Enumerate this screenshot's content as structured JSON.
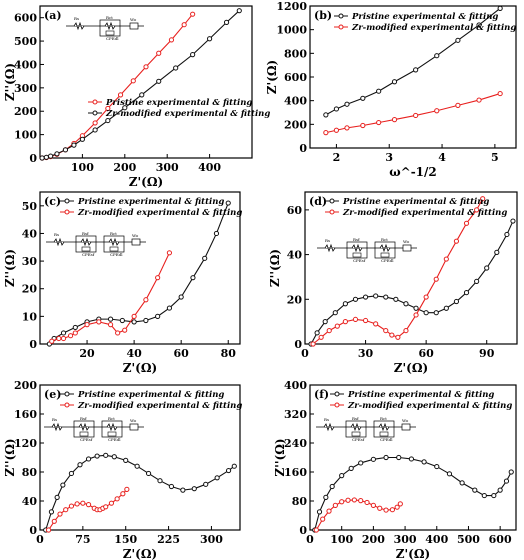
{
  "chart_data": [
    {
      "panel": "(a)",
      "type": "line",
      "xlabel": "Z'(Ω)",
      "ylabel": "Z''(Ω)",
      "xlim": [
        0,
        500
      ],
      "ylim": [
        0,
        650
      ],
      "xticks": [
        "100",
        "200",
        "300",
        "400"
      ],
      "yticks": [
        "0",
        "100",
        "200",
        "300",
        "400",
        "500",
        "600"
      ],
      "legend_position": "center-right",
      "circuit_label": [
        "Rs",
        "Rct",
        "CPEdl",
        "Wo"
      ],
      "series": [
        {
          "name": "Pristine experimental & fitting",
          "color": "#e8201e",
          "x": [
            5,
            15,
            25,
            40,
            60,
            80,
            100,
            130,
            160,
            190,
            220,
            250,
            280,
            310,
            340,
            360
          ],
          "y": [
            0,
            2,
            6,
            16,
            35,
            62,
            95,
            150,
            212,
            270,
            330,
            390,
            448,
            505,
            570,
            615
          ]
        },
        {
          "name": "Zr-modified experimental & fitting",
          "color": "#111111",
          "x": [
            5,
            15,
            25,
            40,
            60,
            80,
            100,
            130,
            160,
            200,
            240,
            280,
            320,
            360,
            400,
            440,
            470
          ],
          "y": [
            0,
            3,
            8,
            18,
            35,
            55,
            80,
            120,
            160,
            215,
            270,
            328,
            385,
            442,
            510,
            580,
            630
          ]
        }
      ]
    },
    {
      "panel": "(b)",
      "type": "line",
      "xlabel": "ω^-1/2",
      "ylabel": "Z'(Ω)",
      "xlim": [
        1.5,
        5.4
      ],
      "ylim": [
        0,
        1200
      ],
      "xticks": [
        "2",
        "3",
        "4",
        "5"
      ],
      "yticks": [
        "0",
        "200",
        "400",
        "600",
        "800",
        "1000",
        "1200"
      ],
      "legend_position": "top-left",
      "series": [
        {
          "name": "Pristine experimental & fitting",
          "color": "#111111",
          "x": [
            1.8,
            2.0,
            2.2,
            2.5,
            2.8,
            3.1,
            3.5,
            3.9,
            4.3,
            4.7,
            5.1
          ],
          "y": [
            280,
            330,
            370,
            420,
            480,
            560,
            660,
            780,
            910,
            1040,
            1180
          ]
        },
        {
          "name": "Zr-modified experimental & fitting",
          "color": "#e8201e",
          "x": [
            1.8,
            2.0,
            2.2,
            2.5,
            2.8,
            3.1,
            3.5,
            3.9,
            4.3,
            4.7,
            5.1
          ],
          "y": [
            130,
            150,
            170,
            190,
            215,
            240,
            275,
            315,
            360,
            405,
            460
          ]
        }
      ]
    },
    {
      "panel": "(c)",
      "type": "line",
      "xlabel": "Z'(Ω)",
      "ylabel": "Z''(Ω)",
      "xlim": [
        0,
        85
      ],
      "ylim": [
        0,
        55
      ],
      "xticks": [
        "20",
        "40",
        "60",
        "80"
      ],
      "yticks": [
        "0",
        "10",
        "20",
        "30",
        "40",
        "50"
      ],
      "legend_position": "top",
      "circuit_label": [
        "Rs",
        "Rsf",
        "Rct",
        "CPEsf",
        "CPEdl",
        "Wo"
      ],
      "series": [
        {
          "name": "Pristine experimental & fitting",
          "color": "#111111",
          "x": [
            4,
            6,
            10,
            15,
            20,
            25,
            30,
            35,
            40,
            45,
            50,
            55,
            60,
            65,
            70,
            75,
            80
          ],
          "y": [
            0,
            2,
            4,
            6,
            8,
            9,
            9,
            8.5,
            8,
            8.5,
            10,
            13,
            17,
            24,
            31,
            40,
            51
          ]
        },
        {
          "name": "Zr-modified experimental & fitting",
          "color": "#e8201e",
          "x": [
            5,
            8,
            10,
            13,
            15,
            20,
            25,
            30,
            33,
            36,
            40,
            45,
            50,
            55
          ],
          "y": [
            1,
            2,
            2,
            3,
            4,
            7,
            8,
            7,
            4,
            5,
            10,
            16,
            24,
            33
          ]
        }
      ]
    },
    {
      "panel": "(d)",
      "type": "line",
      "xlabel": "Z'(Ω)",
      "ylabel": "Z''(Ω)",
      "xlim": [
        0,
        105
      ],
      "ylim": [
        0,
        68
      ],
      "xticks": [
        "0",
        "30",
        "60",
        "90"
      ],
      "yticks": [
        "0",
        "20",
        "40",
        "60"
      ],
      "legend_position": "top",
      "circuit_label": [
        "Rs",
        "Rsf",
        "Rct",
        "CPEsf",
        "CPEdl",
        "Wo"
      ],
      "series": [
        {
          "name": "Pristine experimental & fitting",
          "color": "#111111",
          "x": [
            3,
            6,
            10,
            15,
            20,
            25,
            30,
            35,
            40,
            45,
            50,
            55,
            60,
            65,
            70,
            75,
            80,
            85,
            90,
            95,
            100,
            103
          ],
          "y": [
            0,
            5,
            10,
            14,
            18,
            20,
            21,
            21.5,
            21,
            20,
            18,
            16,
            14,
            14,
            16,
            19,
            23,
            28,
            34,
            41,
            49,
            55
          ]
        },
        {
          "name": "Zr-modified experimental & fitting",
          "color": "#e8201e",
          "x": [
            4,
            8,
            12,
            16,
            20,
            25,
            30,
            35,
            40,
            43,
            46,
            50,
            55,
            60,
            65,
            70,
            75,
            80,
            85,
            88
          ],
          "y": [
            0,
            3,
            6,
            8,
            10,
            11,
            10.5,
            9,
            6,
            4,
            3,
            6,
            13,
            21,
            29,
            38,
            46,
            54,
            60,
            65
          ]
        }
      ]
    },
    {
      "panel": "(e)",
      "type": "line",
      "xlabel": "Z'(Ω)",
      "ylabel": "Z''(Ω)",
      "xlim": [
        0,
        350
      ],
      "ylim": [
        0,
        200
      ],
      "xticks": [
        "0",
        "75",
        "150",
        "225",
        "300"
      ],
      "yticks": [
        "0",
        "40",
        "80",
        "120",
        "160",
        "200"
      ],
      "legend_position": "top",
      "circuit_label": [
        "Rs",
        "Rsf",
        "Rct",
        "CPEsf",
        "CPEdl",
        "Wo"
      ],
      "series": [
        {
          "name": "Pristine experimental & fitting",
          "color": "#111111",
          "x": [
            10,
            20,
            30,
            40,
            55,
            70,
            85,
            100,
            115,
            130,
            150,
            170,
            190,
            210,
            230,
            250,
            270,
            290,
            310,
            330,
            340
          ],
          "y": [
            0,
            25,
            45,
            62,
            78,
            90,
            98,
            102,
            103,
            101,
            96,
            88,
            78,
            68,
            60,
            55,
            57,
            63,
            72,
            82,
            88
          ]
        },
        {
          "name": "Zr-modified experimental & fitting",
          "color": "#e8201e",
          "x": [
            15,
            25,
            35,
            45,
            55,
            65,
            75,
            85,
            95,
            100,
            105,
            110,
            115,
            125,
            135,
            145,
            152
          ],
          "y": [
            0,
            12,
            22,
            28,
            33,
            36,
            37,
            35,
            30,
            28,
            28,
            30,
            32,
            37,
            43,
            50,
            56
          ]
        }
      ]
    },
    {
      "panel": "(f)",
      "type": "line",
      "xlabel": "Z'(Ω)",
      "ylabel": "Z''(Ω)",
      "xlim": [
        0,
        650
      ],
      "ylim": [
        0,
        400
      ],
      "xticks": [
        "0",
        "100",
        "200",
        "300",
        "400",
        "500",
        "600"
      ],
      "yticks": [
        "0",
        "80",
        "160",
        "240",
        "320",
        "400"
      ],
      "legend_position": "top",
      "circuit_label": [
        "Rs",
        "Rsf",
        "Rct",
        "CPEsf",
        "CPEdl",
        "Wo"
      ],
      "series": [
        {
          "name": "Pristine experimental & fitting",
          "color": "#111111",
          "x": [
            15,
            30,
            50,
            70,
            100,
            130,
            160,
            200,
            240,
            280,
            320,
            360,
            400,
            440,
            480,
            520,
            550,
            580,
            600,
            620,
            635
          ],
          "y": [
            0,
            50,
            90,
            120,
            150,
            170,
            185,
            195,
            200,
            200,
            196,
            188,
            175,
            155,
            130,
            110,
            95,
            95,
            110,
            135,
            160
          ]
        },
        {
          "name": "Zr-modified experimental & fitting",
          "color": "#e8201e",
          "x": [
            20,
            40,
            60,
            80,
            100,
            120,
            140,
            160,
            180,
            200,
            220,
            240,
            260,
            275,
            285
          ],
          "y": [
            0,
            30,
            52,
            68,
            78,
            82,
            83,
            81,
            76,
            68,
            60,
            55,
            56,
            63,
            72
          ]
        }
      ]
    }
  ]
}
